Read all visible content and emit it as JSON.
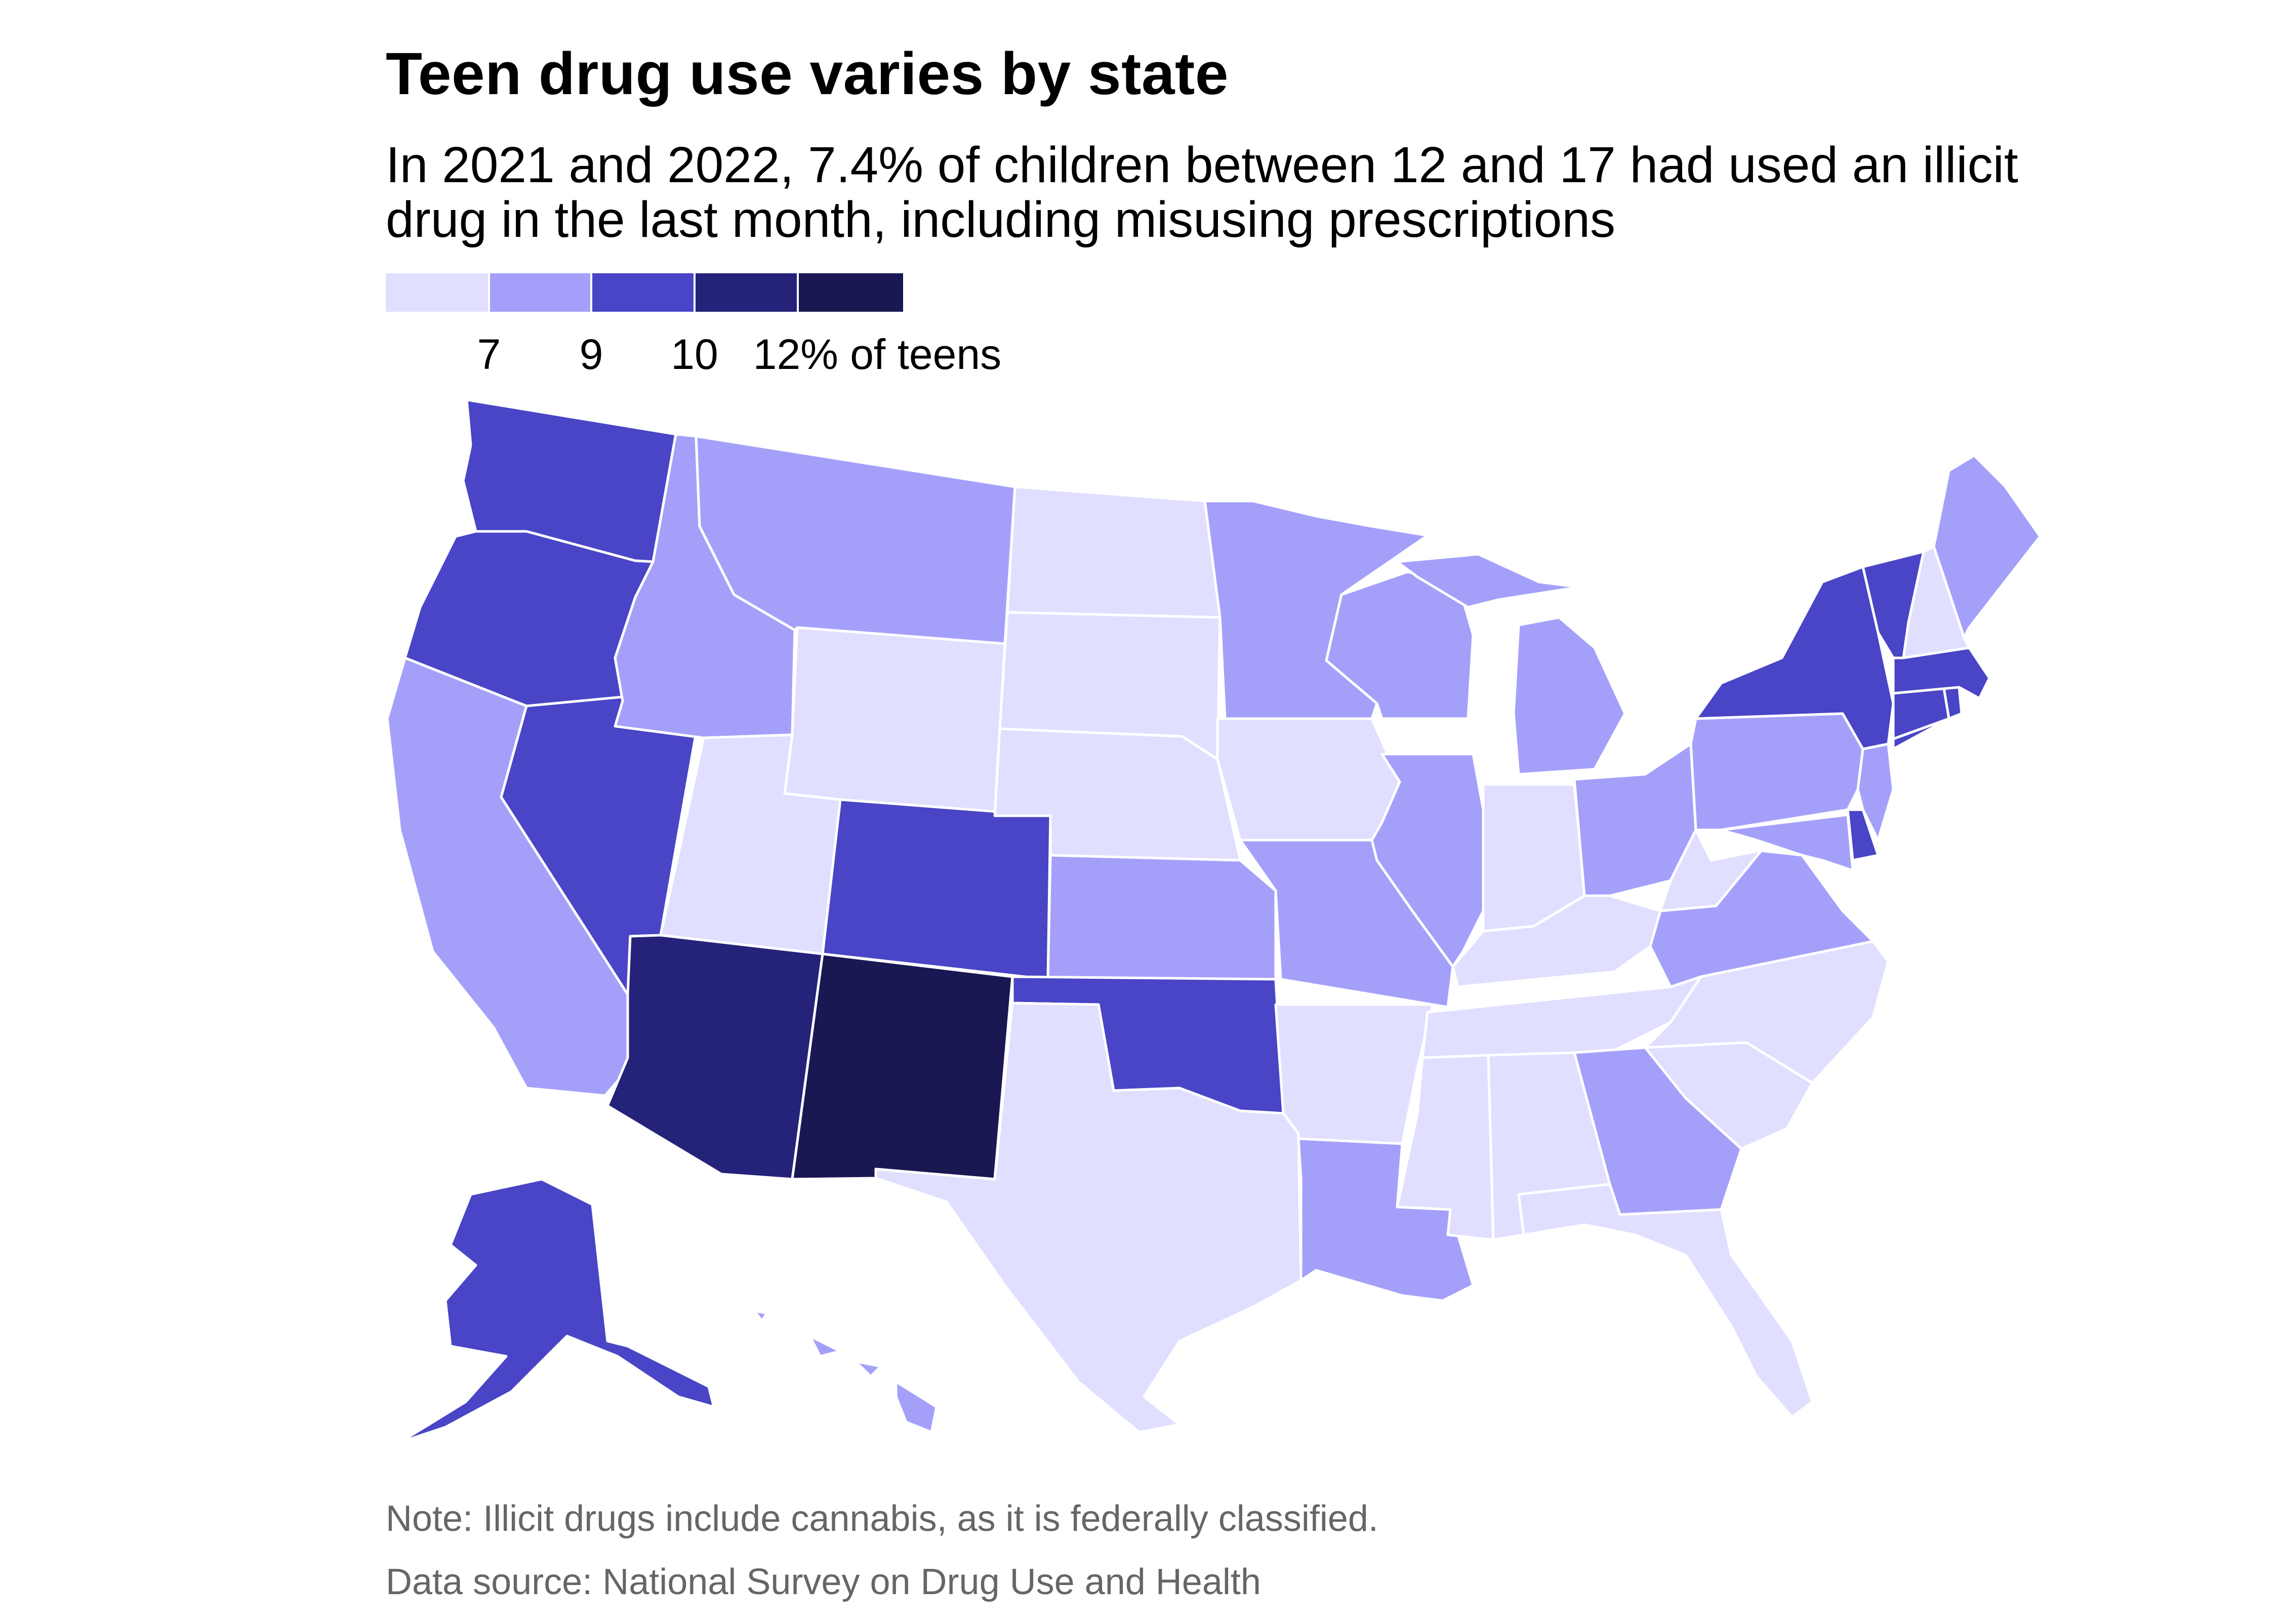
{
  "header": {
    "title": "Teen drug use varies by state",
    "subtitle": "In 2021 and 2022, 7.4% of children between 12 and 17 had used an illicit drug in the last month, including misusing prescriptions"
  },
  "legend": {
    "colors": [
      "#e1dfff",
      "#a4a0fa",
      "#4945c6",
      "#25227a",
      "#1a1852"
    ],
    "labels": [
      "7",
      "9",
      "10",
      "12% of teens"
    ]
  },
  "map_data": {
    "type": "choropleth",
    "region": "United States",
    "value_bins": [
      "below 7",
      "7–9",
      "9–10",
      "10–12",
      "12 and above"
    ],
    "bin_colors": [
      "#e1dfff",
      "#a4a0fa",
      "#4945c6",
      "#25227a",
      "#1a1852"
    ],
    "states": {
      "WA": 2,
      "OR": 2,
      "CA": 1,
      "NV": 2,
      "ID": 1,
      "MT": 1,
      "WY": 0,
      "UT": 0,
      "CO": 2,
      "AZ": 3,
      "NM": 4,
      "ND": 0,
      "SD": 0,
      "NE": 0,
      "KS": 1,
      "OK": 2,
      "TX": 0,
      "MN": 1,
      "IA": 0,
      "MO": 1,
      "AR": 0,
      "LA": 1,
      "WI": 1,
      "IL": 1,
      "MI": 1,
      "IN": 0,
      "OH": 1,
      "KY": 0,
      "TN": 0,
      "MS": 0,
      "AL": 0,
      "GA": 1,
      "FL": 0,
      "SC": 0,
      "NC": 0,
      "VA": 1,
      "WV": 0,
      "MD": 1,
      "DE": 2,
      "PA": 1,
      "NJ": 1,
      "NY": 2,
      "CT": 2,
      "RI": 2,
      "MA": 2,
      "VT": 2,
      "NH": 0,
      "ME": 1,
      "AK": 2,
      "HI": 1
    }
  },
  "footer": {
    "note": "Note: Illicit drugs include cannabis, as it is federally classified.",
    "source": "Data source: National Survey on Drug Use and Health"
  }
}
